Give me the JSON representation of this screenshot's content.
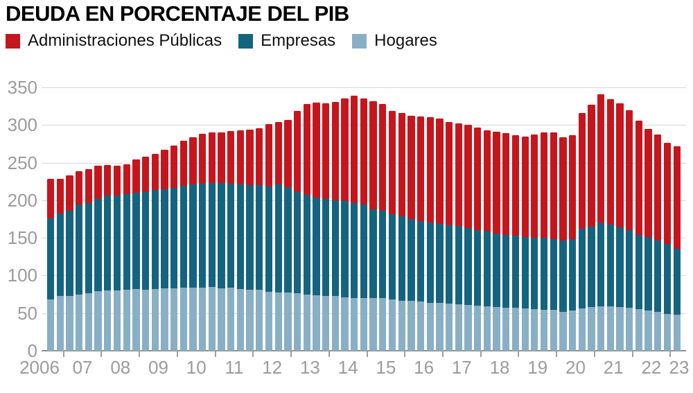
{
  "title": "DEUDA EN PORCENTAJE DEL PIB",
  "legend": {
    "items": [
      {
        "key": "administraciones_publicas",
        "label": "Administraciones Públicas",
        "color": "#c6161d"
      },
      {
        "key": "empresas",
        "label": "Empresas",
        "color": "#15647f"
      },
      {
        "key": "hogares",
        "label": "Hogares",
        "color": "#89afc4"
      }
    ]
  },
  "axes": {
    "y_ticks": [
      350,
      300,
      250,
      200,
      150,
      100,
      50,
      0
    ],
    "x_year_labels": [
      "2006",
      "07",
      "08",
      "09",
      "10",
      "11",
      "12",
      "13",
      "14",
      "15",
      "16",
      "17",
      "18",
      "19",
      "20",
      "21",
      "22",
      "23"
    ],
    "ylim": [
      0,
      350
    ],
    "grid": true
  },
  "chart_data": {
    "type": "bar",
    "stacked": true,
    "title": "DEUDA EN PORCENTAJE DEL PIB",
    "unit": "% del PIB",
    "xlabel": "",
    "ylabel": "",
    "ylim": [
      0,
      350
    ],
    "legend_position": "top",
    "x": [
      "2006-T3",
      "2006-T4",
      "2007-T1",
      "2007-T2",
      "2007-T3",
      "2007-T4",
      "2008-T1",
      "2008-T2",
      "2008-T3",
      "2008-T4",
      "2009-T1",
      "2009-T2",
      "2009-T3",
      "2009-T4",
      "2010-T1",
      "2010-T2",
      "2010-T3",
      "2010-T4",
      "2011-T1",
      "2011-T2",
      "2011-T3",
      "2011-T4",
      "2012-T1",
      "2012-T2",
      "2012-T3",
      "2012-T4",
      "2013-T1",
      "2013-T2",
      "2013-T3",
      "2013-T4",
      "2014-T1",
      "2014-T2",
      "2014-T3",
      "2014-T4",
      "2015-T1",
      "2015-T2",
      "2015-T3",
      "2015-T4",
      "2016-T1",
      "2016-T2",
      "2016-T3",
      "2016-T4",
      "2017-T1",
      "2017-T2",
      "2017-T3",
      "2017-T4",
      "2018-T1",
      "2018-T2",
      "2018-T3",
      "2018-T4",
      "2019-T1",
      "2019-T2",
      "2019-T3",
      "2019-T4",
      "2020-T1",
      "2020-T2",
      "2020-T3",
      "2020-T4",
      "2021-T1",
      "2021-T2",
      "2021-T3",
      "2021-T4",
      "2022-T1",
      "2022-T2",
      "2022-T3",
      "2022-T4",
      "2023-T1"
    ],
    "series": [
      {
        "name": "Hogares",
        "color": "#89afc4",
        "values": [
          68,
          73,
          73,
          75,
          76,
          79,
          80,
          80,
          81,
          82,
          81,
          82,
          83,
          83,
          84,
          84,
          84,
          85,
          83,
          84,
          82,
          81,
          81,
          78,
          77,
          77,
          76,
          75,
          74,
          73,
          73,
          71,
          70,
          70,
          70,
          70,
          68,
          66,
          66,
          65,
          64,
          64,
          63,
          62,
          61,
          60,
          59,
          58,
          57,
          57,
          56,
          55,
          54,
          54,
          52,
          53,
          56,
          58,
          59,
          59,
          58,
          57,
          55,
          53,
          52,
          49,
          48
        ]
      },
      {
        "name": "Empresas",
        "color": "#15647f",
        "values": [
          108,
          109,
          113,
          119,
          120,
          123,
          126,
          126,
          127,
          128,
          130,
          132,
          132,
          133,
          135,
          137,
          138,
          138,
          140,
          138,
          139,
          139,
          139,
          140,
          144,
          140,
          135,
          132,
          130,
          129,
          127,
          128,
          126,
          124,
          118,
          116,
          113,
          113,
          109,
          107,
          106,
          105,
          104,
          104,
          102,
          100,
          99,
          98,
          97,
          96,
          95,
          95,
          96,
          94,
          94,
          95,
          106,
          107,
          111,
          109,
          106,
          103,
          99,
          98,
          94,
          93,
          87
        ]
      },
      {
        "name": "Administraciones Públicas",
        "color": "#c6161d",
        "values": [
          52,
          46,
          47,
          45,
          45,
          44,
          41,
          40,
          40,
          44,
          47,
          48,
          52,
          57,
          60,
          63,
          66,
          67,
          67,
          70,
          72,
          74,
          76,
          83,
          83,
          90,
          108,
          121,
          126,
          127,
          131,
          136,
          143,
          141,
          144,
          142,
          138,
          137,
          137,
          139,
          140,
          140,
          137,
          136,
          137,
          137,
          135,
          135,
          135,
          133,
          134,
          137,
          140,
          142,
          138,
          138,
          154,
          162,
          171,
          166,
          165,
          160,
          152,
          144,
          141,
          134,
          137
        ]
      }
    ]
  }
}
